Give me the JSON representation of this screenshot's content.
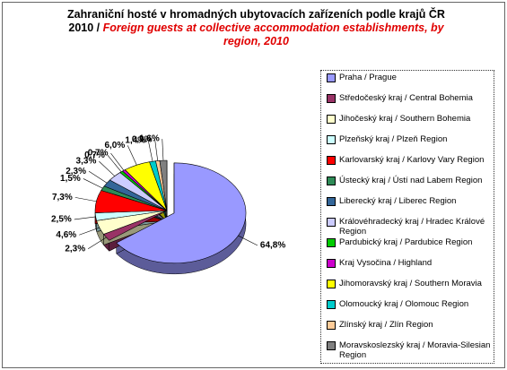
{
  "chart_data": {
    "type": "pie",
    "title": "Zahraniční hosté v hromadných ubytovacích zařízeních podle krajů ČR 2010 /",
    "subtitle": "Foreign guests at collective accommodation establishments, by region, 2010",
    "categories": [
      "Praha / Prague",
      "Středočeský kraj / Central Bohemia",
      "Jihočeský kraj / Southern Bohemia",
      "Plzeňský kraj / Plzeň Region",
      "Karlovarský kraj / Karlovy Vary Region",
      "Ústecký kraj / Ústí nad Labem Region",
      "Liberecký kraj / Liberec Region",
      "Královéhradecký kraj / Hradec Králové Region",
      "Pardubický kraj / Pardubice Region",
      "Kraj Vysočina / Highland",
      "Jihomoravský kraj / Southern Moravia",
      "Olomoucký kraj / Olomouc Region",
      "Zlínský kraj / Zlín Region",
      "Moravskoslezský kraj / Moravia-Silesian Region"
    ],
    "values": [
      64.8,
      2.3,
      4.6,
      2.5,
      7.3,
      1.5,
      2.3,
      3.3,
      0.7,
      0.7,
      6.0,
      1.4,
      0.9,
      1.6
    ],
    "value_labels": [
      "64,8%",
      "2,3%",
      "4,6%",
      "2,5%",
      "7,3%",
      "1,5%",
      "2,3%",
      "3,3%",
      "0,7%",
      "0,7%",
      "6,0%",
      "1,4%",
      "0,9%",
      "1,6%"
    ],
    "colors": [
      "#9999ff",
      "#993366",
      "#ffffcc",
      "#ccffff",
      "#ff0000",
      "#2e8b57",
      "#336699",
      "#ccccff",
      "#00cc00",
      "#cc00cc",
      "#ffff00",
      "#00cccc",
      "#ffcc99",
      "#808080"
    ]
  }
}
